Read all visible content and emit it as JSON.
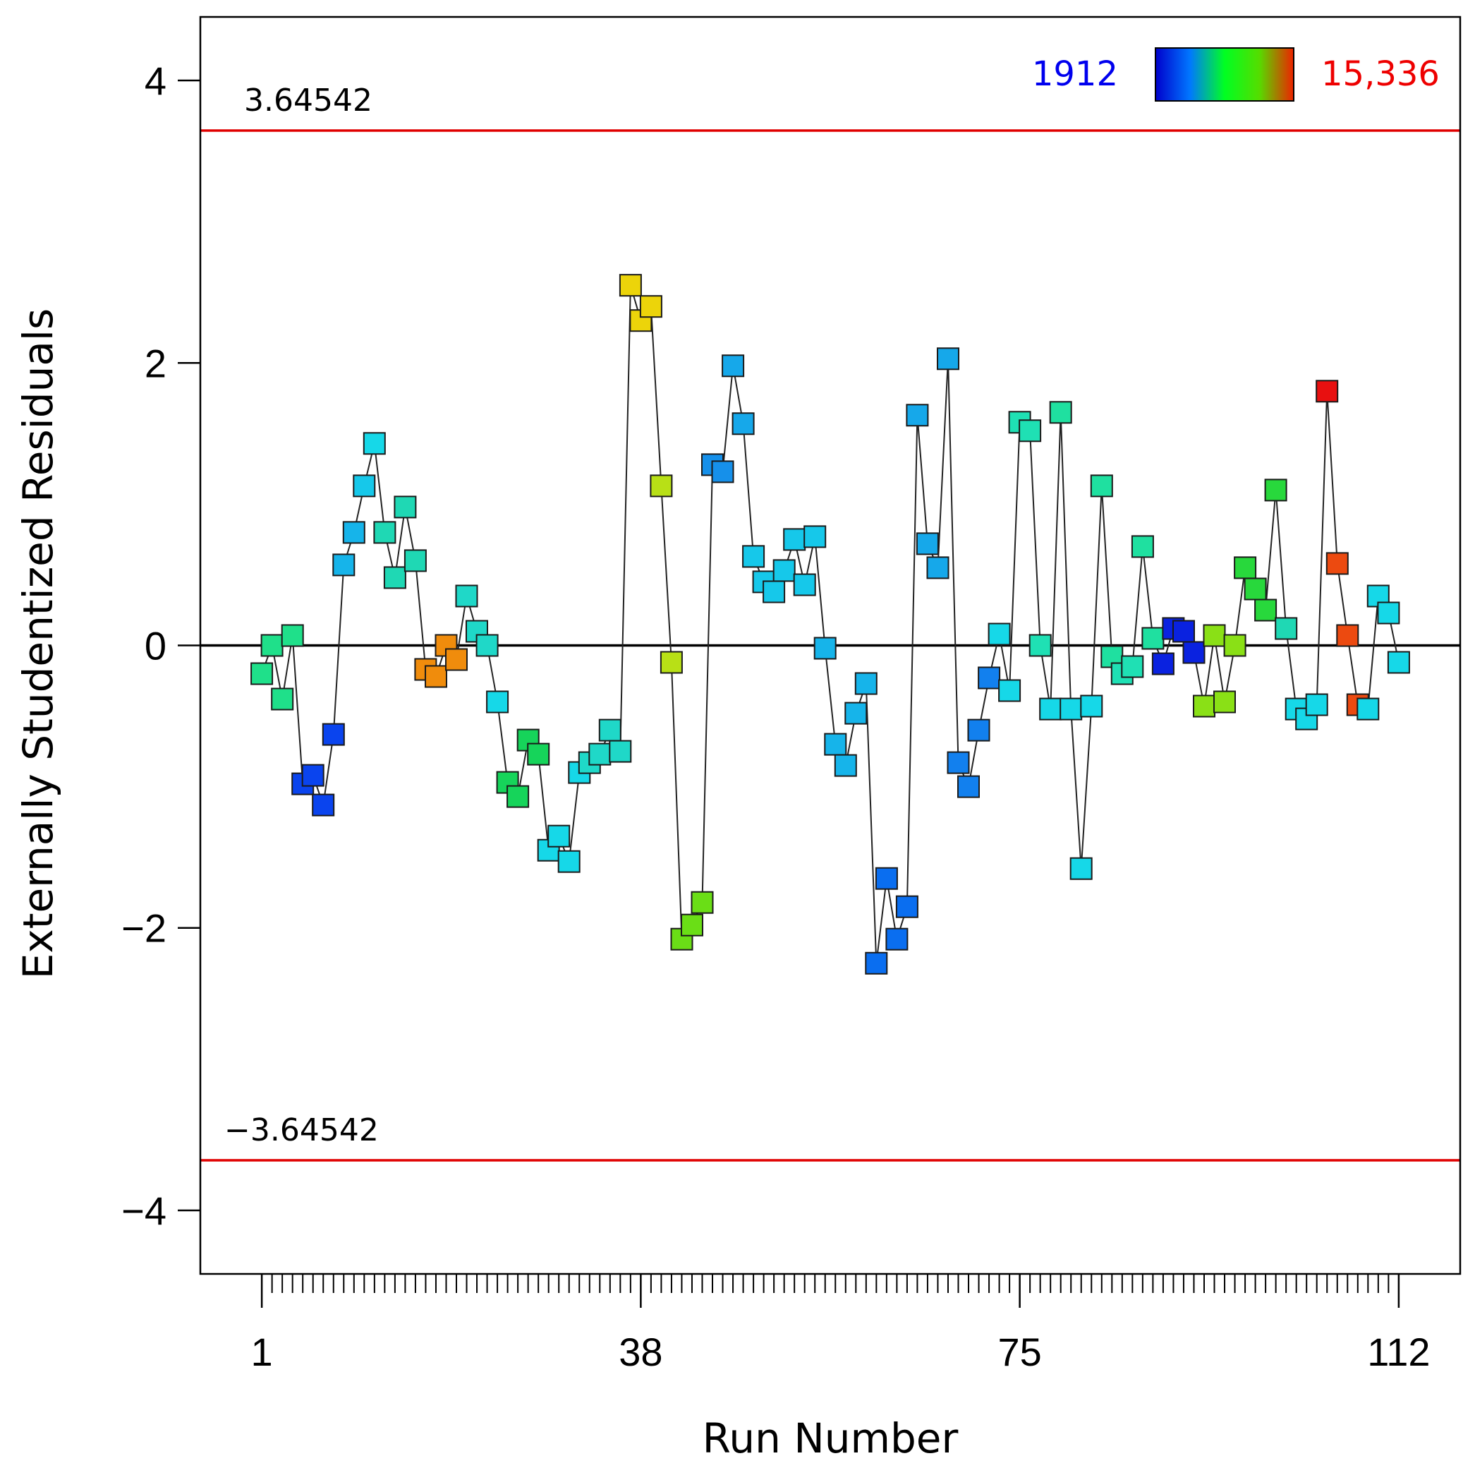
{
  "chart_data": {
    "type": "scatter",
    "title": "",
    "xlabel": "Run Number",
    "ylabel": "Externally Studentized Residuals",
    "xlim": [
      -5,
      118
    ],
    "ylim": [
      -4.45,
      4.45
    ],
    "x_ticks": [
      1,
      38,
      75,
      112
    ],
    "x_tick_labels": [
      "1",
      "38",
      "75",
      "112"
    ],
    "y_ticks": [
      -4,
      -2,
      0,
      2,
      4
    ],
    "y_tick_labels": [
      "−4",
      "−2",
      "0",
      "2",
      "4"
    ],
    "upper_limit": 3.64542,
    "lower_limit": -3.64542,
    "upper_limit_label": "3.64542",
    "lower_limit_label": "−3.64542",
    "legend": {
      "min_label": "1912",
      "max_label": "15,336",
      "min_color": "#0000ee",
      "max_color": "#ee0000",
      "gradient_colors": [
        "#0000cc",
        "#0077ff",
        "#00ff22",
        "#55dd00",
        "#ee2200"
      ]
    },
    "colors": {
      "limit_line": "#e00000",
      "zero_line": "#000000",
      "connector": "#222222"
    },
    "series": [
      {
        "name": "Residuals",
        "points": [
          {
            "x": 1,
            "y": -0.2,
            "color": "#1fe08a"
          },
          {
            "x": 2,
            "y": 0.0,
            "color": "#1fe08a"
          },
          {
            "x": 3,
            "y": -0.38,
            "color": "#1fe08a"
          },
          {
            "x": 4,
            "y": 0.07,
            "color": "#1fe08a"
          },
          {
            "x": 5,
            "y": -0.98,
            "color": "#0a44ee"
          },
          {
            "x": 6,
            "y": -0.92,
            "color": "#0a44ee"
          },
          {
            "x": 7,
            "y": -1.13,
            "color": "#0a44ee"
          },
          {
            "x": 8,
            "y": -0.63,
            "color": "#0a44ee"
          },
          {
            "x": 9,
            "y": 0.57,
            "color": "#16b4ea"
          },
          {
            "x": 10,
            "y": 0.8,
            "color": "#16b4ea"
          },
          {
            "x": 11,
            "y": 1.13,
            "color": "#16c8ea"
          },
          {
            "x": 12,
            "y": 1.43,
            "color": "#16d8e8"
          },
          {
            "x": 13,
            "y": 0.8,
            "color": "#1fd8b4"
          },
          {
            "x": 14,
            "y": 0.48,
            "color": "#1fd8b4"
          },
          {
            "x": 15,
            "y": 0.98,
            "color": "#1fd8b4"
          },
          {
            "x": 16,
            "y": 0.6,
            "color": "#1fd8b4"
          },
          {
            "x": 17,
            "y": -0.17,
            "color": "#f08c0c"
          },
          {
            "x": 18,
            "y": -0.22,
            "color": "#f08c0c"
          },
          {
            "x": 19,
            "y": 0.0,
            "color": "#f08c0c"
          },
          {
            "x": 20,
            "y": -0.1,
            "color": "#f08c0c"
          },
          {
            "x": 21,
            "y": 0.35,
            "color": "#1fd8c8"
          },
          {
            "x": 22,
            "y": 0.1,
            "color": "#1fd8c8"
          },
          {
            "x": 23,
            "y": 0.0,
            "color": "#1fd8c8"
          },
          {
            "x": 24,
            "y": -0.4,
            "color": "#16d8e8"
          },
          {
            "x": 25,
            "y": -0.97,
            "color": "#16d45a"
          },
          {
            "x": 26,
            "y": -1.07,
            "color": "#16d45a"
          },
          {
            "x": 27,
            "y": -0.67,
            "color": "#16d45a"
          },
          {
            "x": 28,
            "y": -0.77,
            "color": "#16d45a"
          },
          {
            "x": 29,
            "y": -1.45,
            "color": "#16d8e8"
          },
          {
            "x": 30,
            "y": -1.35,
            "color": "#16d8e8"
          },
          {
            "x": 31,
            "y": -1.53,
            "color": "#16d8e8"
          },
          {
            "x": 32,
            "y": -0.9,
            "color": "#16d8e8"
          },
          {
            "x": 33,
            "y": -0.83,
            "color": "#1fd8c8"
          },
          {
            "x": 34,
            "y": -0.77,
            "color": "#1fd8c8"
          },
          {
            "x": 35,
            "y": -0.6,
            "color": "#1fd8c8"
          },
          {
            "x": 36,
            "y": -0.75,
            "color": "#1fd8c8"
          },
          {
            "x": 37,
            "y": 2.55,
            "color": "#ecd40a"
          },
          {
            "x": 38,
            "y": 2.3,
            "color": "#ecd40a"
          },
          {
            "x": 39,
            "y": 2.4,
            "color": "#ecd40a"
          },
          {
            "x": 40,
            "y": 1.13,
            "color": "#b8e016"
          },
          {
            "x": 41,
            "y": -0.12,
            "color": "#b8e016"
          },
          {
            "x": 42,
            "y": -2.08,
            "color": "#6ade16"
          },
          {
            "x": 43,
            "y": -1.98,
            "color": "#6ade16"
          },
          {
            "x": 44,
            "y": -1.82,
            "color": "#6ade16"
          },
          {
            "x": 45,
            "y": 1.28,
            "color": "#1690ea"
          },
          {
            "x": 46,
            "y": 1.23,
            "color": "#1690ea"
          },
          {
            "x": 47,
            "y": 1.98,
            "color": "#16a8ea"
          },
          {
            "x": 48,
            "y": 1.57,
            "color": "#16a8ea"
          },
          {
            "x": 49,
            "y": 0.63,
            "color": "#16c8ea"
          },
          {
            "x": 50,
            "y": 0.45,
            "color": "#16c8ea"
          },
          {
            "x": 51,
            "y": 0.38,
            "color": "#16c8ea"
          },
          {
            "x": 52,
            "y": 0.53,
            "color": "#16c8ea"
          },
          {
            "x": 53,
            "y": 0.75,
            "color": "#16c8ea"
          },
          {
            "x": 54,
            "y": 0.43,
            "color": "#16c8ea"
          },
          {
            "x": 55,
            "y": 0.77,
            "color": "#16c8ea"
          },
          {
            "x": 56,
            "y": -0.02,
            "color": "#16b4ea"
          },
          {
            "x": 57,
            "y": -0.7,
            "color": "#16b4ea"
          },
          {
            "x": 58,
            "y": -0.85,
            "color": "#16b4ea"
          },
          {
            "x": 59,
            "y": -0.48,
            "color": "#16b4ea"
          },
          {
            "x": 60,
            "y": -0.27,
            "color": "#16b4ea"
          },
          {
            "x": 61,
            "y": -2.25,
            "color": "#0a6ef0"
          },
          {
            "x": 62,
            "y": -1.65,
            "color": "#0a6ef0"
          },
          {
            "x": 63,
            "y": -2.08,
            "color": "#0a6ef0"
          },
          {
            "x": 64,
            "y": -1.85,
            "color": "#0a6ef0"
          },
          {
            "x": 65,
            "y": 1.63,
            "color": "#16a8ea"
          },
          {
            "x": 66,
            "y": 0.72,
            "color": "#16a8ea"
          },
          {
            "x": 67,
            "y": 0.55,
            "color": "#16a8ea"
          },
          {
            "x": 68,
            "y": 2.03,
            "color": "#16a8ea"
          },
          {
            "x": 69,
            "y": -0.83,
            "color": "#1280ee"
          },
          {
            "x": 70,
            "y": -1.0,
            "color": "#1280ee"
          },
          {
            "x": 71,
            "y": -0.6,
            "color": "#1280ee"
          },
          {
            "x": 72,
            "y": -0.23,
            "color": "#1280ee"
          },
          {
            "x": 73,
            "y": 0.08,
            "color": "#16d8e8"
          },
          {
            "x": 74,
            "y": -0.32,
            "color": "#16d8e8"
          },
          {
            "x": 75,
            "y": 1.58,
            "color": "#1fe0b4"
          },
          {
            "x": 76,
            "y": 1.52,
            "color": "#1fe0b4"
          },
          {
            "x": 77,
            "y": 0.0,
            "color": "#1fe0b4"
          },
          {
            "x": 78,
            "y": -0.45,
            "color": "#16d8e8"
          },
          {
            "x": 79,
            "y": 1.65,
            "color": "#1fe0a0"
          },
          {
            "x": 80,
            "y": -0.45,
            "color": "#16d8e8"
          },
          {
            "x": 81,
            "y": -1.58,
            "color": "#16d8e8"
          },
          {
            "x": 82,
            "y": -0.43,
            "color": "#16d8e8"
          },
          {
            "x": 83,
            "y": 1.13,
            "color": "#1fe0a0"
          },
          {
            "x": 84,
            "y": -0.08,
            "color": "#1fe0a0"
          },
          {
            "x": 85,
            "y": -0.2,
            "color": "#1fe0b4"
          },
          {
            "x": 86,
            "y": -0.15,
            "color": "#1fe0b4"
          },
          {
            "x": 87,
            "y": 0.7,
            "color": "#1fe0a0"
          },
          {
            "x": 88,
            "y": 0.05,
            "color": "#1fe0a0"
          },
          {
            "x": 89,
            "y": -0.13,
            "color": "#0a22e0"
          },
          {
            "x": 90,
            "y": 0.12,
            "color": "#0a22e0"
          },
          {
            "x": 91,
            "y": 0.1,
            "color": "#0a22e0"
          },
          {
            "x": 92,
            "y": -0.05,
            "color": "#0a22e0"
          },
          {
            "x": 93,
            "y": -0.43,
            "color": "#8ae016"
          },
          {
            "x": 94,
            "y": 0.07,
            "color": "#8ae016"
          },
          {
            "x": 95,
            "y": -0.4,
            "color": "#8ae016"
          },
          {
            "x": 96,
            "y": 0.0,
            "color": "#8ae016"
          },
          {
            "x": 97,
            "y": 0.55,
            "color": "#28d83c"
          },
          {
            "x": 98,
            "y": 0.4,
            "color": "#28d83c"
          },
          {
            "x": 99,
            "y": 0.25,
            "color": "#28d83c"
          },
          {
            "x": 100,
            "y": 1.1,
            "color": "#28d83c"
          },
          {
            "x": 101,
            "y": 0.12,
            "color": "#1fd8b4"
          },
          {
            "x": 102,
            "y": -0.45,
            "color": "#16d8e8"
          },
          {
            "x": 103,
            "y": -0.52,
            "color": "#16d8e8"
          },
          {
            "x": 104,
            "y": -0.42,
            "color": "#16d8e8"
          },
          {
            "x": 105,
            "y": 1.8,
            "color": "#e81010"
          },
          {
            "x": 106,
            "y": 0.58,
            "color": "#ec4a10"
          },
          {
            "x": 107,
            "y": 0.07,
            "color": "#ec4a10"
          },
          {
            "x": 108,
            "y": -0.42,
            "color": "#ec4a10"
          },
          {
            "x": 109,
            "y": -0.45,
            "color": "#16d8e8"
          },
          {
            "x": 110,
            "y": 0.35,
            "color": "#16d8e8"
          },
          {
            "x": 111,
            "y": 0.23,
            "color": "#16d8e8"
          },
          {
            "x": 112,
            "y": -0.12,
            "color": "#16d8e8"
          }
        ]
      }
    ]
  }
}
